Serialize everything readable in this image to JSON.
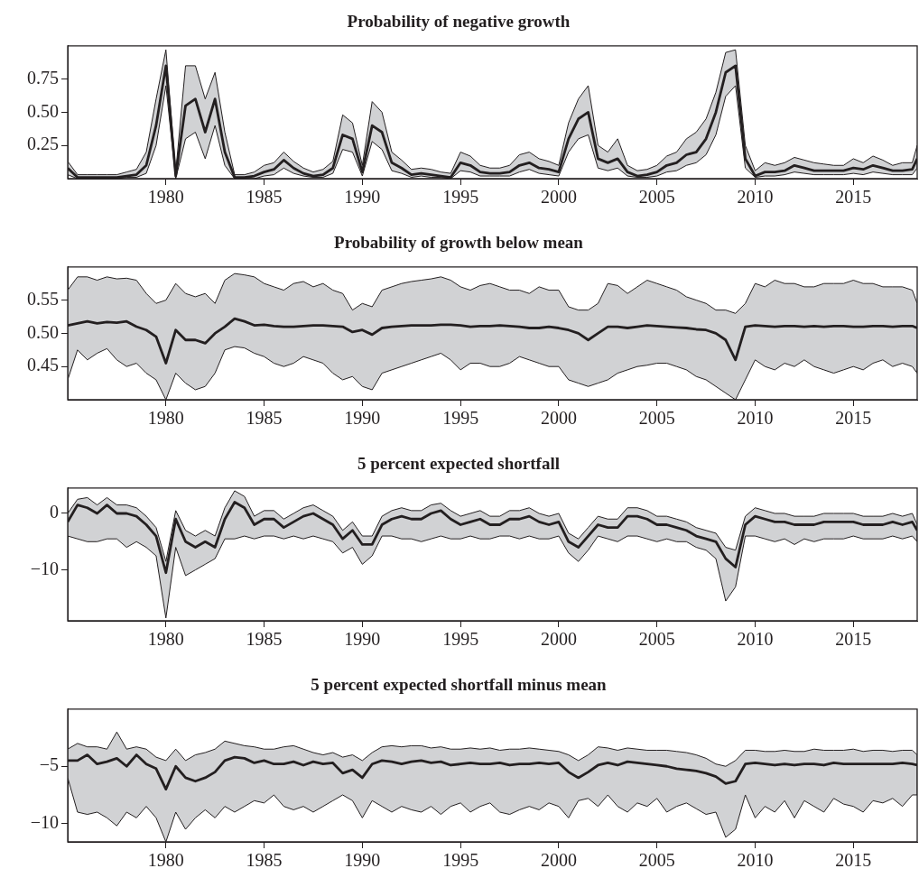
{
  "chart_data": [
    {
      "type": "line",
      "title": "Probability of negative growth",
      "x": [
        1975,
        1975.5,
        1976,
        1976.5,
        1977,
        1977.5,
        1978,
        1978.5,
        1979,
        1979.5,
        1980,
        1980.5,
        1981,
        1981.5,
        1982,
        1982.5,
        1983,
        1983.5,
        1984,
        1984.5,
        1985,
        1985.5,
        1986,
        1986.5,
        1987,
        1987.5,
        1988,
        1988.5,
        1989,
        1989.5,
        1990,
        1990.5,
        1991,
        1991.5,
        1992,
        1992.5,
        1993,
        1993.5,
        1994,
        1994.5,
        1995,
        1995.5,
        1996,
        1996.5,
        1997,
        1997.5,
        1998,
        1998.5,
        1999,
        1999.5,
        2000,
        2000.5,
        2001,
        2001.5,
        2002,
        2002.5,
        2003,
        2003.5,
        2004,
        2004.5,
        2005,
        2005.5,
        2006,
        2006.5,
        2007,
        2007.5,
        2008,
        2008.5,
        2009,
        2009.5,
        2010,
        2010.5,
        2011,
        2011.5,
        2012,
        2012.5,
        2013,
        2013.5,
        2014,
        2014.5,
        2015,
        2015.5,
        2016,
        2016.5,
        2017,
        2017.5,
        2018,
        2018.25
      ],
      "series": [
        {
          "color": "#231f20",
          "values": [
            0.08,
            0.01,
            0.01,
            0.01,
            0.01,
            0.01,
            0.02,
            0.03,
            0.1,
            0.4,
            0.85,
            0.02,
            0.55,
            0.6,
            0.35,
            0.6,
            0.2,
            0.01,
            0.01,
            0.02,
            0.05,
            0.07,
            0.14,
            0.08,
            0.04,
            0.02,
            0.03,
            0.08,
            0.33,
            0.3,
            0.05,
            0.4,
            0.35,
            0.12,
            0.08,
            0.03,
            0.04,
            0.03,
            0.02,
            0.01,
            0.12,
            0.1,
            0.05,
            0.04,
            0.04,
            0.05,
            0.1,
            0.12,
            0.08,
            0.07,
            0.05,
            0.3,
            0.45,
            0.5,
            0.15,
            0.12,
            0.15,
            0.05,
            0.02,
            0.03,
            0.05,
            0.1,
            0.12,
            0.18,
            0.2,
            0.3,
            0.5,
            0.8,
            0.85,
            0.15,
            0.02,
            0.05,
            0.05,
            0.06,
            0.1,
            0.08,
            0.06,
            0.06,
            0.06,
            0.06,
            0.08,
            0.07,
            0.1,
            0.08,
            0.06,
            0.06,
            0.07,
            0.15
          ],
          "upper": [
            0.13,
            0.03,
            0.03,
            0.03,
            0.03,
            0.03,
            0.05,
            0.07,
            0.2,
            0.6,
            0.97,
            0.05,
            0.85,
            0.85,
            0.6,
            0.8,
            0.35,
            0.03,
            0.03,
            0.05,
            0.1,
            0.12,
            0.2,
            0.13,
            0.08,
            0.05,
            0.07,
            0.13,
            0.48,
            0.42,
            0.1,
            0.58,
            0.5,
            0.2,
            0.14,
            0.07,
            0.08,
            0.07,
            0.05,
            0.04,
            0.2,
            0.17,
            0.1,
            0.08,
            0.08,
            0.1,
            0.18,
            0.2,
            0.15,
            0.13,
            0.1,
            0.42,
            0.6,
            0.7,
            0.25,
            0.2,
            0.3,
            0.1,
            0.06,
            0.07,
            0.1,
            0.17,
            0.2,
            0.3,
            0.35,
            0.45,
            0.65,
            0.95,
            0.97,
            0.25,
            0.06,
            0.12,
            0.1,
            0.12,
            0.16,
            0.14,
            0.12,
            0.11,
            0.1,
            0.1,
            0.15,
            0.12,
            0.17,
            0.14,
            0.1,
            0.12,
            0.12,
            0.25
          ],
          "lower": [
            0.03,
            0,
            0,
            0,
            0,
            0,
            0.01,
            0.01,
            0.04,
            0.25,
            0.7,
            0,
            0.3,
            0.35,
            0.15,
            0.4,
            0.1,
            0,
            0,
            0,
            0.02,
            0.03,
            0.08,
            0.04,
            0.02,
            0.01,
            0.01,
            0.04,
            0.22,
            0.2,
            0.02,
            0.28,
            0.22,
            0.06,
            0.04,
            0.01,
            0.02,
            0.01,
            0.01,
            0,
            0.06,
            0.05,
            0.02,
            0.02,
            0.02,
            0.02,
            0.05,
            0.07,
            0.04,
            0.03,
            0.02,
            0.2,
            0.3,
            0.33,
            0.08,
            0.06,
            0.08,
            0.02,
            0.01,
            0.01,
            0.02,
            0.05,
            0.06,
            0.1,
            0.12,
            0.18,
            0.33,
            0.62,
            0.7,
            0.08,
            0.01,
            0.02,
            0.02,
            0.03,
            0.05,
            0.04,
            0.03,
            0.03,
            0.03,
            0.03,
            0.04,
            0.03,
            0.05,
            0.04,
            0.03,
            0.03,
            0.03,
            0.08
          ]
        }
      ],
      "xlim": [
        1975,
        2018.25
      ],
      "xticks": [
        1980,
        1985,
        1990,
        1995,
        2000,
        2005,
        2010,
        2015
      ],
      "ylim": [
        0,
        1
      ],
      "yticks": [
        {
          "value": 0.25,
          "label": "0.25"
        },
        {
          "value": 0.5,
          "label": "0.50"
        },
        {
          "value": 0.75,
          "label": "0.75"
        }
      ]
    },
    {
      "type": "line",
      "title": "Probability of growth below mean",
      "x": [
        1975,
        1975.5,
        1976,
        1976.5,
        1977,
        1977.5,
        1978,
        1978.5,
        1979,
        1979.5,
        1980,
        1980.5,
        1981,
        1981.5,
        1982,
        1982.5,
        1983,
        1983.5,
        1984,
        1984.5,
        1985,
        1985.5,
        1986,
        1986.5,
        1987,
        1987.5,
        1988,
        1988.5,
        1989,
        1989.5,
        1990,
        1990.5,
        1991,
        1991.5,
        1992,
        1992.5,
        1993,
        1993.5,
        1994,
        1994.5,
        1995,
        1995.5,
        1996,
        1996.5,
        1997,
        1997.5,
        1998,
        1998.5,
        1999,
        1999.5,
        2000,
        2000.5,
        2001,
        2001.5,
        2002,
        2002.5,
        2003,
        2003.5,
        2004,
        2004.5,
        2005,
        2005.5,
        2006,
        2006.5,
        2007,
        2007.5,
        2008,
        2008.5,
        2009,
        2009.5,
        2010,
        2010.5,
        2011,
        2011.5,
        2012,
        2012.5,
        2013,
        2013.5,
        2014,
        2014.5,
        2015,
        2015.5,
        2016,
        2016.5,
        2017,
        2017.5,
        2018,
        2018.25
      ],
      "series": [
        {
          "color": "#231f20",
          "values": [
            0.512,
            0.515,
            0.518,
            0.515,
            0.517,
            0.516,
            0.518,
            0.51,
            0.505,
            0.495,
            0.455,
            0.505,
            0.49,
            0.49,
            0.485,
            0.5,
            0.51,
            0.522,
            0.518,
            0.512,
            0.513,
            0.511,
            0.51,
            0.51,
            0.511,
            0.512,
            0.512,
            0.511,
            0.51,
            0.502,
            0.505,
            0.498,
            0.508,
            0.51,
            0.511,
            0.512,
            0.512,
            0.512,
            0.513,
            0.513,
            0.512,
            0.51,
            0.511,
            0.511,
            0.512,
            0.511,
            0.51,
            0.508,
            0.508,
            0.51,
            0.508,
            0.505,
            0.5,
            0.49,
            0.5,
            0.51,
            0.51,
            0.508,
            0.51,
            0.512,
            0.511,
            0.51,
            0.509,
            0.508,
            0.506,
            0.505,
            0.5,
            0.49,
            0.46,
            0.51,
            0.512,
            0.511,
            0.51,
            0.511,
            0.511,
            0.51,
            0.511,
            0.51,
            0.511,
            0.511,
            0.51,
            0.51,
            0.511,
            0.511,
            0.51,
            0.511,
            0.511,
            0.508
          ],
          "upper": [
            0.565,
            0.585,
            0.585,
            0.58,
            0.585,
            0.582,
            0.583,
            0.58,
            0.56,
            0.545,
            0.55,
            0.575,
            0.56,
            0.555,
            0.56,
            0.545,
            0.58,
            0.59,
            0.588,
            0.585,
            0.575,
            0.57,
            0.565,
            0.575,
            0.578,
            0.57,
            0.575,
            0.565,
            0.56,
            0.535,
            0.545,
            0.54,
            0.565,
            0.57,
            0.575,
            0.578,
            0.58,
            0.582,
            0.585,
            0.58,
            0.57,
            0.565,
            0.572,
            0.575,
            0.57,
            0.565,
            0.565,
            0.56,
            0.57,
            0.565,
            0.565,
            0.54,
            0.535,
            0.535,
            0.545,
            0.575,
            0.572,
            0.56,
            0.57,
            0.58,
            0.575,
            0.57,
            0.565,
            0.555,
            0.55,
            0.545,
            0.535,
            0.535,
            0.53,
            0.545,
            0.575,
            0.57,
            0.58,
            0.575,
            0.575,
            0.57,
            0.57,
            0.575,
            0.575,
            0.575,
            0.58,
            0.575,
            0.575,
            0.57,
            0.57,
            0.57,
            0.565,
            0.545
          ],
          "lower": [
            0.43,
            0.475,
            0.46,
            0.47,
            0.477,
            0.46,
            0.45,
            0.455,
            0.44,
            0.43,
            0.4,
            0.44,
            0.425,
            0.415,
            0.42,
            0.44,
            0.475,
            0.48,
            0.478,
            0.47,
            0.465,
            0.455,
            0.45,
            0.455,
            0.465,
            0.46,
            0.455,
            0.44,
            0.43,
            0.435,
            0.42,
            0.415,
            0.44,
            0.445,
            0.45,
            0.455,
            0.46,
            0.465,
            0.47,
            0.46,
            0.445,
            0.455,
            0.455,
            0.45,
            0.45,
            0.455,
            0.465,
            0.46,
            0.455,
            0.45,
            0.45,
            0.43,
            0.425,
            0.42,
            0.425,
            0.43,
            0.44,
            0.445,
            0.45,
            0.452,
            0.455,
            0.455,
            0.45,
            0.445,
            0.435,
            0.43,
            0.42,
            0.41,
            0.4,
            0.43,
            0.46,
            0.45,
            0.445,
            0.455,
            0.45,
            0.46,
            0.45,
            0.445,
            0.44,
            0.445,
            0.45,
            0.445,
            0.455,
            0.46,
            0.45,
            0.455,
            0.45,
            0.44
          ]
        }
      ],
      "xlim": [
        1975,
        2018.25
      ],
      "xticks": [
        1980,
        1985,
        1990,
        1995,
        2000,
        2005,
        2010,
        2015
      ],
      "ylim": [
        0.4,
        0.6
      ],
      "yticks": [
        {
          "value": 0.45,
          "label": "0.45"
        },
        {
          "value": 0.5,
          "label": "0.50"
        },
        {
          "value": 0.55,
          "label": "0.55"
        }
      ]
    },
    {
      "type": "line",
      "title": "5 percent expected shortfall",
      "x": [
        1975,
        1975.5,
        1976,
        1976.5,
        1977,
        1977.5,
        1978,
        1978.5,
        1979,
        1979.5,
        1980,
        1980.5,
        1981,
        1981.5,
        1982,
        1982.5,
        1983,
        1983.5,
        1984,
        1984.5,
        1985,
        1985.5,
        1986,
        1986.5,
        1987,
        1987.5,
        1988,
        1988.5,
        1989,
        1989.5,
        1990,
        1990.5,
        1991,
        1991.5,
        1992,
        1992.5,
        1993,
        1993.5,
        1994,
        1994.5,
        1995,
        1995.5,
        1996,
        1996.5,
        1997,
        1997.5,
        1998,
        1998.5,
        1999,
        1999.5,
        2000,
        2000.5,
        2001,
        2001.5,
        2002,
        2002.5,
        2003,
        2003.5,
        2004,
        2004.5,
        2005,
        2005.5,
        2006,
        2006.5,
        2007,
        2007.5,
        2008,
        2008.5,
        2009,
        2009.5,
        2010,
        2010.5,
        2011,
        2011.5,
        2012,
        2012.5,
        2013,
        2013.5,
        2014,
        2014.5,
        2015,
        2015.5,
        2016,
        2016.5,
        2017,
        2017.5,
        2018,
        2018.25
      ],
      "series": [
        {
          "color": "#231f20",
          "values": [
            -1.5,
            1.5,
            1,
            0,
            1.5,
            0,
            0,
            -0.5,
            -2,
            -4,
            -10.5,
            -1,
            -5,
            -6,
            -5,
            -6,
            -1,
            2,
            1,
            -2,
            -1,
            -1,
            -2.5,
            -1.5,
            -0.5,
            0,
            -1,
            -2,
            -4.5,
            -3,
            -5.5,
            -5.5,
            -2,
            -1,
            -0.5,
            -1,
            -1,
            0,
            0.5,
            -1,
            -2,
            -1.5,
            -1,
            -2,
            -2,
            -1,
            -1,
            -0.5,
            -1.5,
            -2,
            -1.5,
            -5,
            -6,
            -4,
            -2,
            -2.5,
            -2.5,
            -0.5,
            -0.5,
            -1,
            -2,
            -2,
            -2.5,
            -3,
            -4,
            -4.5,
            -5,
            -8,
            -9.5,
            -2,
            -0.5,
            -1,
            -1.5,
            -1.5,
            -2,
            -2,
            -2,
            -1.5,
            -1.5,
            -1.5,
            -1.5,
            -2,
            -2,
            -2,
            -1.5,
            -2,
            -1.5,
            -3
          ],
          "upper": [
            0,
            2.5,
            2.8,
            1.5,
            2.8,
            1.5,
            1.5,
            1,
            -0.5,
            -2.5,
            -8.5,
            0.5,
            -3,
            -4,
            -3,
            -4,
            1,
            4,
            3,
            -0.5,
            0.5,
            0.5,
            -1,
            0,
            1,
            1.5,
            0.5,
            -0.5,
            -3,
            -1.5,
            -4,
            -4,
            -0.5,
            0.5,
            1,
            0.5,
            0.5,
            1.5,
            1.8,
            0.5,
            -0.5,
            0,
            0.5,
            -0.5,
            -0.5,
            0.5,
            0.5,
            1,
            0,
            -0.5,
            0,
            -3.5,
            -4.5,
            -2.5,
            -0.5,
            -1,
            -1,
            1,
            1,
            0.5,
            -0.5,
            -0.5,
            -1,
            -1.5,
            -2.5,
            -3,
            -3.5,
            -6,
            -6.5,
            -0.5,
            1,
            0.5,
            0,
            0,
            -0.5,
            -0.5,
            -0.5,
            0,
            0,
            0,
            0,
            -0.5,
            -0.5,
            -0.5,
            0,
            -0.5,
            0,
            -2
          ],
          "lower": [
            -4,
            -4.5,
            -5,
            -5,
            -4.5,
            -4.5,
            -6,
            -5,
            -6,
            -7.5,
            -18.5,
            -6,
            -11,
            -10,
            -9,
            -8,
            -4.5,
            -4.5,
            -4,
            -4.5,
            -4,
            -4,
            -4.5,
            -4,
            -4.5,
            -4,
            -4.5,
            -5,
            -7,
            -6,
            -9,
            -7.5,
            -4,
            -4,
            -4.5,
            -4.5,
            -5,
            -4.5,
            -4,
            -4.5,
            -4.5,
            -4,
            -4.5,
            -4.5,
            -4,
            -4,
            -4.5,
            -4,
            -4.5,
            -4.5,
            -4,
            -7,
            -8.5,
            -6.5,
            -4,
            -4.5,
            -5,
            -4,
            -4,
            -4.5,
            -5,
            -4.5,
            -5,
            -5,
            -6,
            -6.5,
            -8,
            -15.5,
            -13,
            -4,
            -4,
            -4.5,
            -5,
            -4.5,
            -5.5,
            -4.5,
            -5,
            -4.5,
            -4.5,
            -4.5,
            -4,
            -4.5,
            -4.5,
            -4.5,
            -4,
            -4.5,
            -4,
            -5
          ]
        }
      ],
      "xlim": [
        1975,
        2018.25
      ],
      "xticks": [
        1980,
        1985,
        1990,
        1995,
        2000,
        2005,
        2010,
        2015
      ],
      "ylim": [
        -19,
        4.5
      ],
      "yticks": [
        {
          "value": -10,
          "label": "−10"
        },
        0
      ]
    },
    {
      "type": "line",
      "title": "5 percent expected shortfall minus mean",
      "x": [
        1975,
        1975.5,
        1976,
        1976.5,
        1977,
        1977.5,
        1978,
        1978.5,
        1979,
        1979.5,
        1980,
        1980.5,
        1981,
        1981.5,
        1982,
        1982.5,
        1983,
        1983.5,
        1984,
        1984.5,
        1985,
        1985.5,
        1986,
        1986.5,
        1987,
        1987.5,
        1988,
        1988.5,
        1989,
        1989.5,
        1990,
        1990.5,
        1991,
        1991.5,
        1992,
        1992.5,
        1993,
        1993.5,
        1994,
        1994.5,
        1995,
        1995.5,
        1996,
        1996.5,
        1997,
        1997.5,
        1998,
        1998.5,
        1999,
        1999.5,
        2000,
        2000.5,
        2001,
        2001.5,
        2002,
        2002.5,
        2003,
        2003.5,
        2004,
        2004.5,
        2005,
        2005.5,
        2006,
        2006.5,
        2007,
        2007.5,
        2008,
        2008.5,
        2009,
        2009.5,
        2010,
        2010.5,
        2011,
        2011.5,
        2012,
        2012.5,
        2013,
        2013.5,
        2014,
        2014.5,
        2015,
        2015.5,
        2016,
        2016.5,
        2017,
        2017.5,
        2018,
        2018.25
      ],
      "series": [
        {
          "color": "#231f20",
          "values": [
            -4.5,
            -4.5,
            -4,
            -4.8,
            -4.6,
            -4.3,
            -5,
            -4,
            -4.8,
            -5.2,
            -7,
            -5,
            -6,
            -6.3,
            -6,
            -5.5,
            -4.5,
            -4.2,
            -4.3,
            -4.7,
            -4.5,
            -4.8,
            -4.8,
            -4.6,
            -4.9,
            -4.6,
            -4.8,
            -4.7,
            -5.6,
            -5.3,
            -6,
            -4.8,
            -4.5,
            -4.6,
            -4.8,
            -4.6,
            -4.5,
            -4.7,
            -4.6,
            -4.9,
            -4.8,
            -4.7,
            -4.8,
            -4.8,
            -4.7,
            -4.9,
            -4.8,
            -4.8,
            -4.7,
            -4.8,
            -4.7,
            -5.5,
            -6,
            -5.5,
            -4.9,
            -4.7,
            -4.9,
            -4.6,
            -4.7,
            -4.8,
            -4.9,
            -5,
            -5.2,
            -5.3,
            -5.4,
            -5.6,
            -5.9,
            -6.5,
            -6.3,
            -4.8,
            -4.7,
            -4.8,
            -4.9,
            -4.8,
            -4.9,
            -4.8,
            -4.8,
            -4.9,
            -4.7,
            -4.8,
            -4.8,
            -4.8,
            -4.8,
            -4.8,
            -4.8,
            -4.7,
            -4.8,
            -4.9
          ],
          "upper": [
            -3.5,
            -3,
            -3.3,
            -3.3,
            -3.5,
            -2,
            -3.5,
            -3.3,
            -3.5,
            -4.2,
            -4.5,
            -3.5,
            -4.5,
            -4,
            -3.8,
            -3.5,
            -2.8,
            -3,
            -3.2,
            -3.3,
            -3.5,
            -3.5,
            -3.3,
            -3.2,
            -3.5,
            -3.8,
            -4,
            -3.8,
            -4.2,
            -4,
            -4.5,
            -3.8,
            -3.3,
            -3.2,
            -3.3,
            -3.2,
            -3.2,
            -3.4,
            -3.3,
            -3.5,
            -3.5,
            -3.4,
            -3.5,
            -3.4,
            -3.6,
            -3.5,
            -3.5,
            -3.4,
            -3.5,
            -3.6,
            -3.7,
            -4,
            -4.5,
            -4,
            -3.3,
            -3.4,
            -3.6,
            -3.4,
            -3.5,
            -3.6,
            -3.6,
            -3.6,
            -3.7,
            -3.8,
            -4,
            -4.3,
            -4.8,
            -5,
            -4.5,
            -3.6,
            -3.6,
            -3.7,
            -3.7,
            -3.6,
            -3.7,
            -3.7,
            -3.5,
            -3.6,
            -3.6,
            -3.6,
            -3.5,
            -3.7,
            -3.6,
            -3.6,
            -3.7,
            -3.6,
            -3.6,
            -4
          ],
          "lower": [
            -6,
            -9,
            -9.2,
            -9,
            -9.5,
            -10.2,
            -9,
            -9.5,
            -8.5,
            -9.5,
            -11.6,
            -9,
            -10.5,
            -9.5,
            -8.8,
            -9.5,
            -8.5,
            -9,
            -8.5,
            -8,
            -8.2,
            -7.5,
            -8.5,
            -8.8,
            -8.5,
            -9,
            -8.5,
            -8,
            -7.5,
            -8,
            -9.5,
            -8,
            -8.5,
            -9,
            -8.5,
            -8.8,
            -9,
            -8.5,
            -9.2,
            -8.5,
            -8.2,
            -9,
            -8.5,
            -8.2,
            -9,
            -9.2,
            -8.8,
            -8.5,
            -8.8,
            -8.2,
            -8.5,
            -9.5,
            -8,
            -7.8,
            -8.5,
            -7.5,
            -8.5,
            -9,
            -8.2,
            -8.5,
            -7.8,
            -9,
            -8.5,
            -8.2,
            -8.7,
            -9.2,
            -9,
            -11.2,
            -10.5,
            -7.5,
            -9.5,
            -8.5,
            -9,
            -8,
            -9.5,
            -8,
            -8.5,
            -9,
            -7.8,
            -8.3,
            -8.5,
            -9,
            -8,
            -8.2,
            -7.8,
            -8.5,
            -7.5,
            -7.5
          ]
        }
      ],
      "xlim": [
        1975,
        2018.25
      ],
      "xticks": [
        1980,
        1985,
        1990,
        1995,
        2000,
        2005,
        2010,
        2015
      ],
      "ylim": [
        -11.6,
        0
      ],
      "yticks": [
        {
          "value": -10,
          "label": "−10"
        },
        {
          "value": -5,
          "label": "−5"
        }
      ]
    }
  ]
}
